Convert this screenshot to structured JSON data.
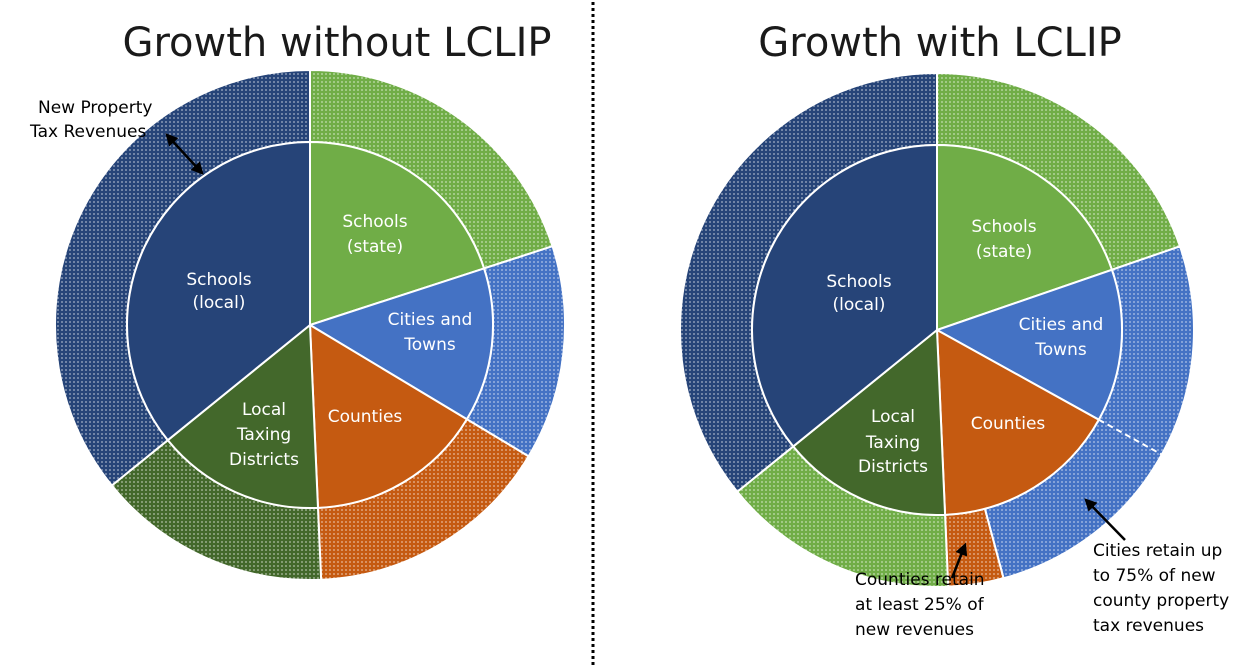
{
  "left": {
    "title": "Growth without LCLIP",
    "schools_state": [
      "Schools",
      "(state)"
    ],
    "schools_local": [
      "Schools",
      "(local)"
    ],
    "cities": [
      "Cities and",
      "Towns"
    ],
    "counties": "Counties",
    "local_districts": [
      "Local",
      "Taxing",
      "Districts"
    ],
    "annotation": [
      "New Property",
      "Tax Revenues"
    ]
  },
  "right": {
    "title": "Growth with LCLIP",
    "schools_state": [
      "Schools",
      "(state)"
    ],
    "schools_local": [
      "Schools",
      "(local)"
    ],
    "cities": [
      "Cities and",
      "Towns"
    ],
    "counties": "Counties",
    "local_districts": [
      "Local",
      "Taxing",
      "Districts"
    ],
    "counties_note": [
      "Counties retain",
      "at least 25% of",
      "new revenues"
    ],
    "cities_note": [
      "Cities retain up",
      "to 75% of new",
      "county property",
      "tax revenues"
    ]
  }
}
